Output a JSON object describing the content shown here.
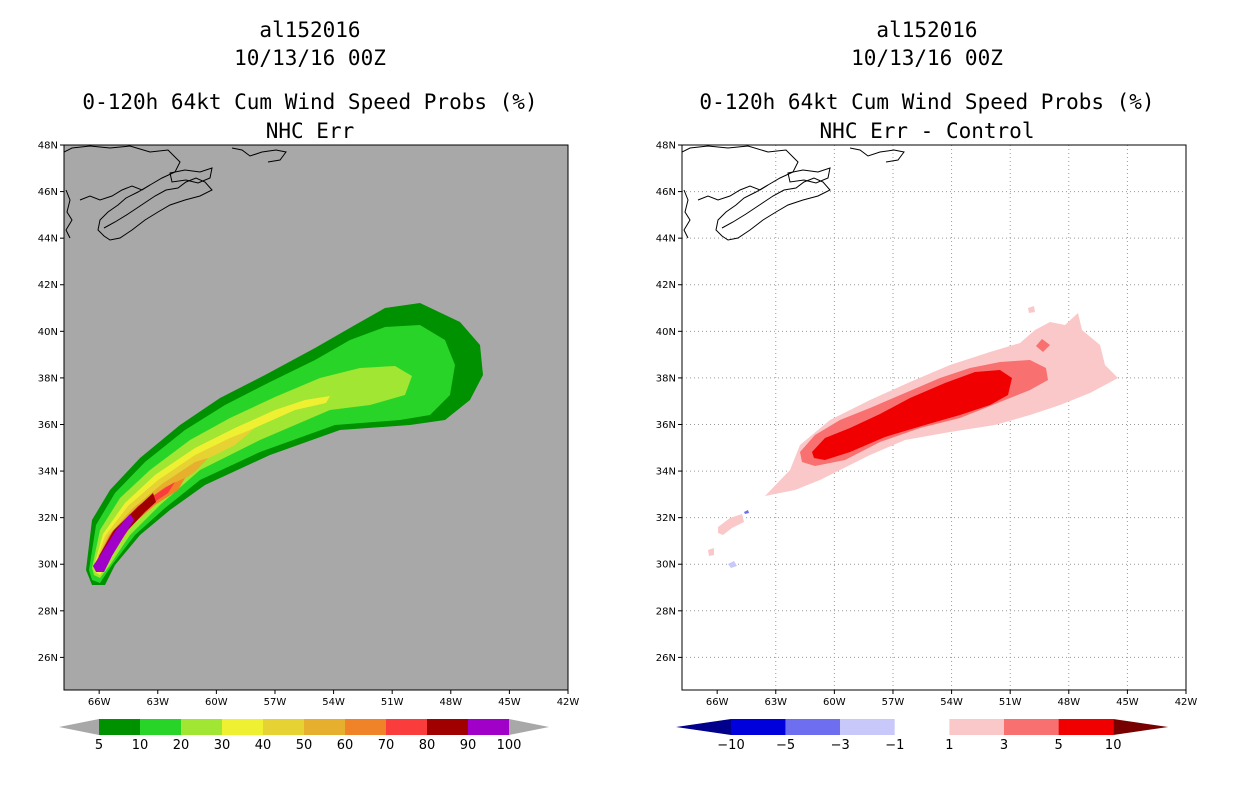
{
  "chart_data": [
    {
      "type": "heatmap",
      "storm_id": "al152016",
      "datetime": "10/13/16 00Z",
      "title": "0-120h 64kt Cum Wind Speed Probs (%)",
      "subtitle": "NHC Err",
      "x_ticks": [
        "66W",
        "63W",
        "60W",
        "57W",
        "54W",
        "51W",
        "48W",
        "45W",
        "42W"
      ],
      "y_ticks": [
        "26N",
        "28N",
        "30N",
        "32N",
        "34N",
        "36N",
        "38N",
        "40N",
        "42N",
        "44N",
        "46N",
        "48N"
      ],
      "xlim_deg_w": [
        67.8,
        42
      ],
      "ylim_deg_n": [
        24.6,
        48
      ],
      "grid": false,
      "colorbar": {
        "labels": [
          "5",
          "10",
          "20",
          "30",
          "40",
          "50",
          "60",
          "70",
          "80",
          "90",
          "100"
        ],
        "colors": [
          "#009100",
          "#28d428",
          "#a0e632",
          "#f0f032",
          "#e6d232",
          "#e6af2d",
          "#f08228",
          "#fa3c3c",
          "#a00000",
          "#a000c8"
        ]
      }
    },
    {
      "type": "heatmap",
      "storm_id": "al152016",
      "datetime": "10/13/16 00Z",
      "title": "0-120h 64kt Cum Wind Speed Probs (%)",
      "subtitle": "NHC Err - Control",
      "x_ticks": [
        "66W",
        "63W",
        "60W",
        "57W",
        "54W",
        "51W",
        "48W",
        "45W",
        "42W"
      ],
      "y_ticks": [
        "26N",
        "28N",
        "30N",
        "32N",
        "34N",
        "36N",
        "38N",
        "40N",
        "42N",
        "44N",
        "46N",
        "48N"
      ],
      "xlim_deg_w": [
        67.8,
        42
      ],
      "ylim_deg_n": [
        24.6,
        48
      ],
      "grid": true,
      "colorbar": {
        "labels": [
          "-10",
          "-5",
          "-3",
          "-1",
          "1",
          "3",
          "5",
          "10"
        ],
        "colors": [
          "#0000dc",
          "#6e6ef0",
          "#c8c8fa",
          "#ffffff",
          "#fac8c8",
          "#f87070",
          "#f00000"
        ],
        "end_colors": [
          "#00008c",
          "#780000"
        ]
      }
    }
  ]
}
